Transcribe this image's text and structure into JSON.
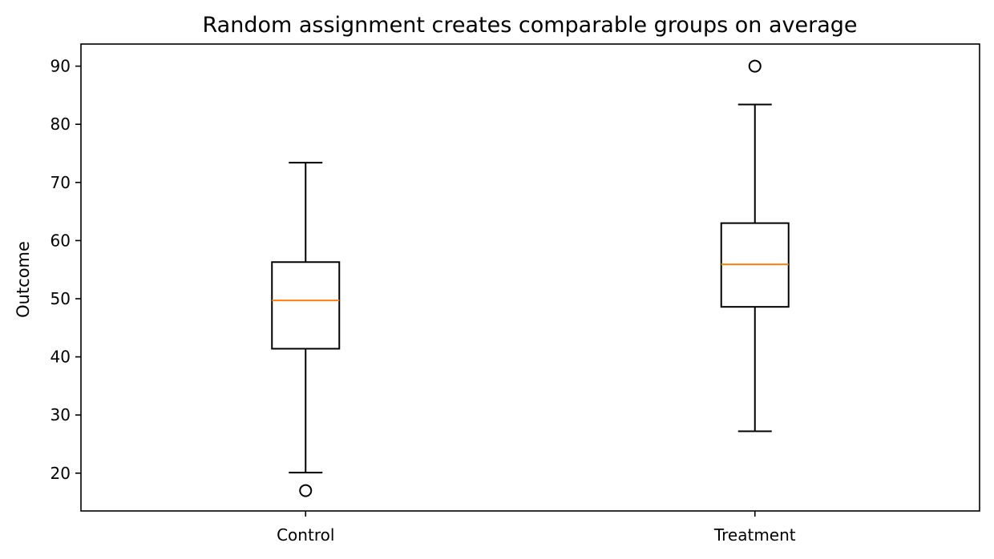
{
  "chart_data": {
    "type": "box",
    "title": "Random assignment creates comparable groups on average",
    "xlabel": "",
    "ylabel": "Outcome",
    "ylim": [
      13.5,
      93.8
    ],
    "yticks": [
      20,
      30,
      40,
      50,
      60,
      70,
      80,
      90
    ],
    "categories": [
      "Control",
      "Treatment"
    ],
    "boxes": [
      {
        "category": "Control",
        "whisker_low": 20.1,
        "q1": 41.4,
        "median": 49.7,
        "q3": 56.3,
        "whisker_high": 73.4,
        "outliers": [
          17.0
        ]
      },
      {
        "category": "Treatment",
        "whisker_low": 27.2,
        "q1": 48.6,
        "median": 55.9,
        "q3": 63.0,
        "whisker_high": 83.4,
        "outliers": [
          90.0
        ]
      }
    ],
    "grid": false,
    "colors": {
      "box": "#000000",
      "median": "#ff7f0e"
    }
  }
}
